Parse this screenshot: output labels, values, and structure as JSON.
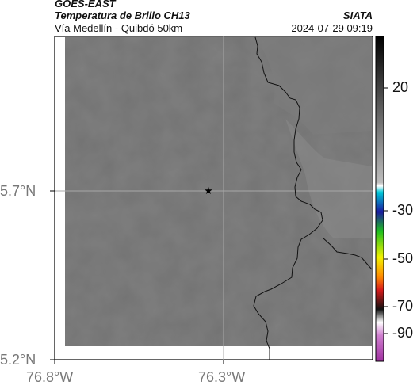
{
  "header": {
    "satellite": "GOES-EAST",
    "product": "Temperatura de Brillo CH13",
    "region": "Vía Medellín - Quibdó 50km",
    "agency": "SIATA",
    "timestamp": "2024-07-29 09:19"
  },
  "map": {
    "lat_labels": [
      "5.7°N",
      "5.2°N"
    ],
    "lon_labels": [
      "76.8°W",
      "76.3°W"
    ],
    "marker": "star-marker"
  },
  "colorbar": {
    "ticks": [
      "20",
      "-30",
      "-50",
      "-70",
      "-90"
    ],
    "colors": {
      "black": "#000000",
      "gray": "#8a8a8a",
      "white": "#ffffff",
      "cyan": "#00c8d8",
      "blue": "#1a1aa0",
      "green": "#1fbf1f",
      "yellow": "#f2f200",
      "orange": "#ff8a00",
      "red": "#d81b1b",
      "magenta": "#c040c0"
    }
  }
}
